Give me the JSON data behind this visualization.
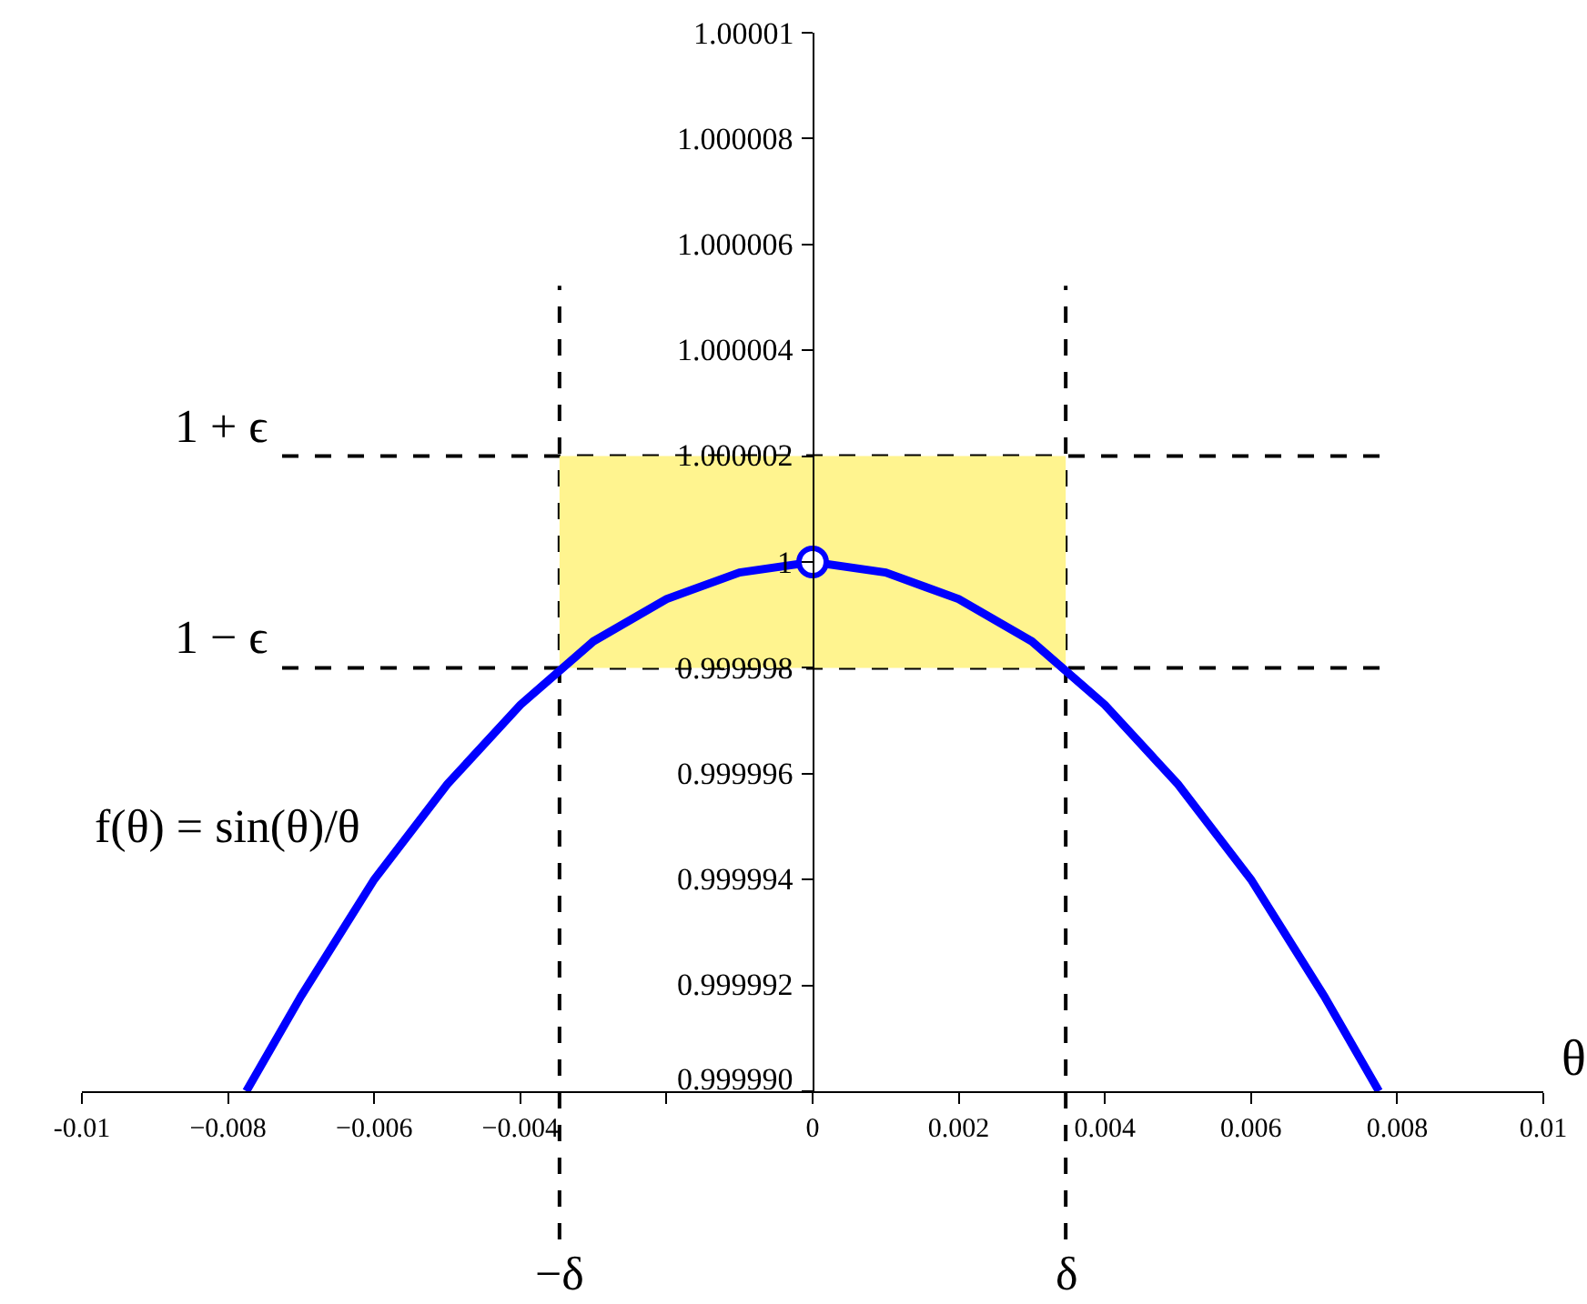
{
  "chart_data": {
    "type": "line",
    "xlabel": "θ",
    "xlim": [
      -0.01,
      0.01
    ],
    "xticks": [
      -0.01,
      {
        "value": -0.008,
        "label": "−0.008"
      },
      {
        "value": -0.006,
        "label": "−0.006"
      },
      {
        "value": -0.004,
        "label": "−0.004"
      },
      {
        "value": -0.002,
        "label": null
      },
      0,
      0.002,
      0.004,
      0.006,
      0.008,
      0.01
    ],
    "ylim": [
      0.99999,
      1.00001
    ],
    "yticks": [
      {
        "value": 0.99999,
        "label": "0.999990"
      },
      0.999992,
      0.999994,
      0.999996,
      0.999998,
      1,
      1.000002,
      1.000004,
      1.000006,
      1.000008,
      1.00001
    ],
    "series": [
      {
        "color": "#0000ff",
        "x": [
          -0.00775,
          -0.007,
          -0.006,
          -0.005,
          -0.004,
          -0.003,
          -0.002,
          -0.001,
          0,
          0.001,
          0.002,
          0.003,
          0.004,
          0.005,
          0.006,
          0.007,
          0.00775
        ],
        "values": [
          0.99999,
          0.9999918,
          0.999994,
          0.9999958,
          0.9999973,
          0.9999985,
          0.9999993,
          0.9999998,
          1,
          0.9999998,
          0.9999993,
          0.9999985,
          0.9999973,
          0.9999958,
          0.999994,
          0.9999918,
          0.99999
        ]
      },
      {
        "type": "scatter",
        "color": "#0000ff",
        "marker": "circle",
        "x": [
          0
        ],
        "values": [
          1
        ]
      }
    ],
    "ref_lines": [
      {
        "axis": "y",
        "value": 1.000002,
        "label": "1 + ϵ",
        "line_style": "dashed"
      },
      {
        "axis": "y",
        "value": 0.999998,
        "label": "1 − ϵ",
        "line_style": "dashed"
      },
      {
        "axis": "x",
        "value": -0.003464,
        "label": "−δ",
        "line_style": "dashed"
      },
      {
        "axis": "x",
        "value": 0.003464,
        "label": "δ",
        "line_style": "dashed"
      }
    ],
    "bands": [
      {
        "axis": "y",
        "from": 0.999998,
        "to": 1.000002,
        "color": "#fff48f"
      }
    ],
    "annotations": [
      "f(θ) = sin(θ)/θ"
    ]
  }
}
